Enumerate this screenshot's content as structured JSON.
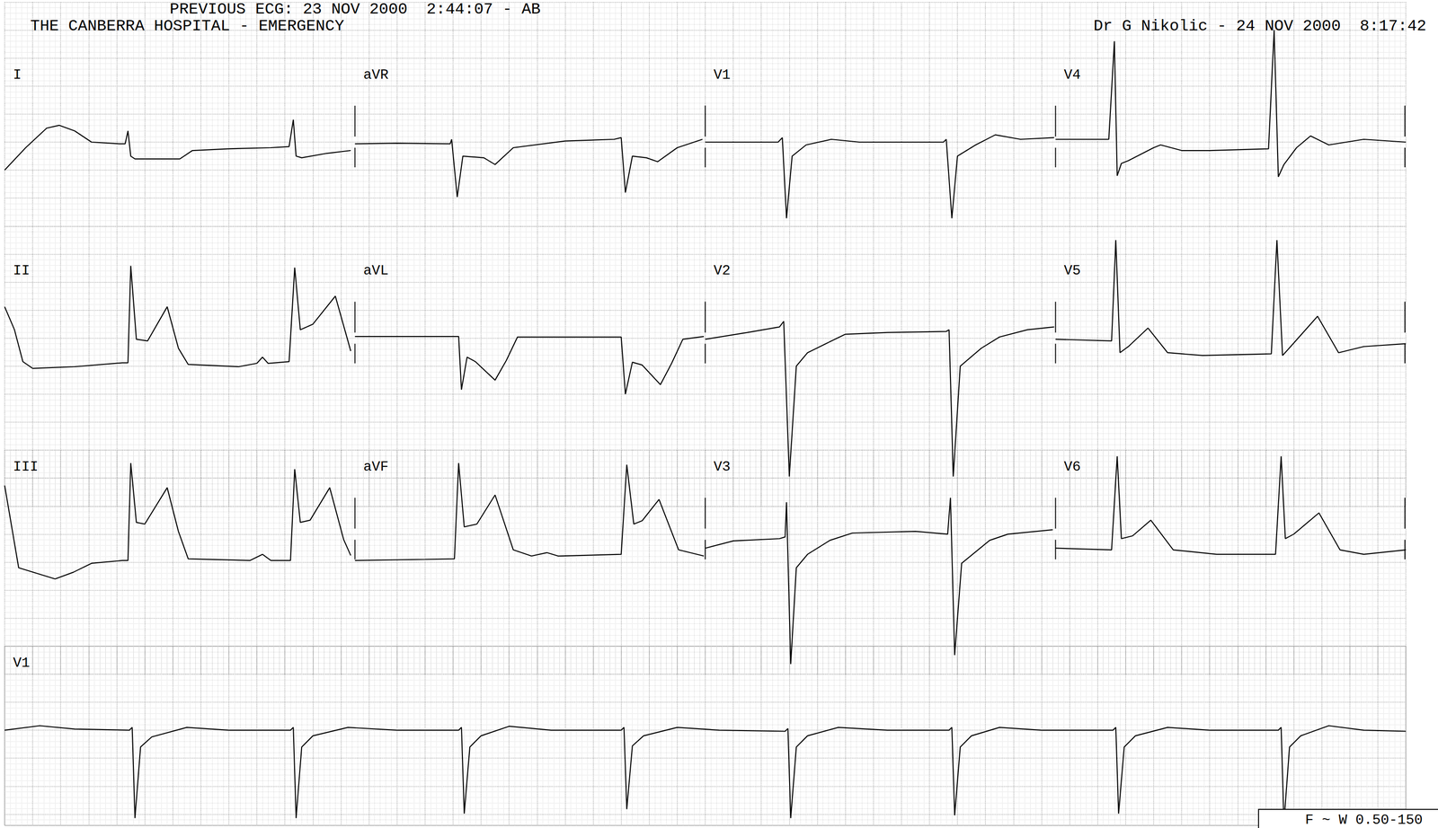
{
  "chart_data": [
    {
      "type": "line",
      "title": "THE CANBERRA HOSPITAL - EMERGENCY",
      "annotations": [
        "PREVIOUS ECG: 23 NOV 2000  2:44:07 - AB",
        "Dr G Nikolic - 24 NOV 2000  8:17:42"
      ],
      "color": "#000000",
      "grid": true,
      "tick_labels": false,
      "xlim": [
        0,
        10
      ],
      "xticks": [
        0,
        0.2,
        0.4,
        0.6,
        0.8,
        1,
        1.2,
        1.4,
        1.6,
        1.8,
        2,
        2.2,
        2.4,
        2.6,
        2.8,
        3,
        3.2,
        3.4,
        3.6,
        3.8,
        4,
        4.2,
        4.4,
        4.6,
        4.8,
        5,
        5.2,
        5.4,
        5.6,
        5.8,
        6,
        6.2,
        6.4,
        6.6,
        6.8,
        7,
        7.2,
        7.4,
        7.6,
        7.8,
        8,
        8.2,
        8.4,
        8.6,
        8.8,
        9,
        9.2,
        9.4,
        9.6,
        9.8,
        10
      ],
      "ylim": [
        -1.5,
        2.5
      ],
      "yticks": [
        -1.5,
        -1,
        -0.5,
        0,
        0.5,
        1,
        1.5,
        2,
        2.5
      ],
      "series": [
        {
          "name": "I",
          "x": [
            0,
            0.15,
            0.3,
            0.39,
            0.5,
            0.62,
            0.82,
            0.86,
            0.88,
            0.9,
            0.93,
            1.25,
            1.34,
            1.6,
            1.9,
            2.03,
            2.06,
            2.08,
            2.12,
            2.3,
            2.47
          ],
          "values": [
            -0.5,
            -0.1,
            0.25,
            0.3,
            0.2,
            0,
            -0.03,
            -0.03,
            0.2,
            -0.25,
            -0.3,
            -0.3,
            -0.15,
            -0.12,
            -0.1,
            -0.08,
            0.4,
            -0.25,
            -0.28,
            -0.2,
            -0.15
          ]
        },
        {
          "name": "aVR",
          "x": [
            2.5,
            2.8,
            3.18,
            3.19,
            3.23,
            3.27,
            3.42,
            3.5,
            3.63,
            4,
            4.35,
            4.4,
            4.43,
            4.48,
            4.58,
            4.66,
            4.8,
            4.98
          ],
          "values": [
            -0.03,
            -0.02,
            -0.03,
            0.05,
            -0.98,
            -0.25,
            -0.28,
            -0.4,
            -0.1,
            0.02,
            0.05,
            0.08,
            -0.9,
            -0.25,
            -0.28,
            -0.35,
            -0.1,
            0.05
          ]
        },
        {
          "name": "V1",
          "x": [
            5,
            5.52,
            5.55,
            5.58,
            5.62,
            5.72,
            5.9,
            6.1,
            6.7,
            6.72,
            6.76,
            6.8,
            6.93,
            7.07,
            7.25,
            7.49
          ],
          "values": [
            0,
            0,
            0.08,
            -1.36,
            -0.25,
            -0.05,
            0.05,
            0,
            0,
            0.05,
            -1.36,
            -0.25,
            -0.05,
            0.13,
            0.05,
            0.08
          ]
        },
        {
          "name": "V4",
          "x": [
            7.5,
            7.88,
            7.92,
            7.94,
            7.97,
            8.02,
            8.2,
            8.25,
            8.4,
            8.6,
            9.02,
            9.06,
            9.09,
            9.13,
            9.22,
            9.32,
            9.45,
            9.7,
            10
          ],
          "values": [
            0.05,
            0.05,
            1.8,
            -0.6,
            -0.38,
            -0.33,
            -0.1,
            -0.05,
            -0.15,
            -0.15,
            -0.12,
            2,
            -0.62,
            -0.4,
            -0.1,
            0.11,
            -0.05,
            0.05,
            0
          ]
        }
      ]
    },
    {
      "type": "line",
      "color": "#000000",
      "grid": true,
      "tick_labels": false,
      "xlim": [
        0,
        10
      ],
      "xticks": [
        0,
        0.2,
        0.4,
        0.6,
        0.8,
        1,
        1.2,
        1.4,
        1.6,
        1.8,
        2,
        2.2,
        2.4,
        2.6,
        2.8,
        3,
        3.2,
        3.4,
        3.6,
        3.8,
        4,
        4.2,
        4.4,
        4.6,
        4.8,
        5,
        5.2,
        5.4,
        5.6,
        5.8,
        6,
        6.2,
        6.4,
        6.6,
        6.8,
        7,
        7.2,
        7.4,
        7.6,
        7.8,
        8,
        8.2,
        8.4,
        8.6,
        8.8,
        9,
        9.2,
        9.4,
        9.6,
        9.8,
        10
      ],
      "ylim": [
        -3,
        2
      ],
      "yticks": [
        -3,
        -2.5,
        -2,
        -1.5,
        -1,
        -0.5,
        0,
        0.5,
        1,
        1.5,
        2
      ],
      "series": [
        {
          "name": "II",
          "x": [
            0,
            0.07,
            0.13,
            0.2,
            0.5,
            0.84,
            0.88,
            0.9,
            0.94,
            1.02,
            1.16,
            1.24,
            1.31,
            1.67,
            1.8,
            1.84,
            1.88,
            2.03,
            2.07,
            2.11,
            2.2,
            2.36,
            2.47
          ],
          "values": [
            0.56,
            0.15,
            -0.42,
            -0.54,
            -0.51,
            -0.44,
            -0.44,
            1.29,
            -0.02,
            -0.05,
            0.56,
            -0.18,
            -0.47,
            -0.51,
            -0.45,
            -0.34,
            -0.45,
            -0.42,
            1.26,
            0.15,
            0.25,
            0.75,
            -0.23
          ]
        },
        {
          "name": "aVL",
          "x": [
            2.5,
            3.2,
            3.24,
            3.26,
            3.3,
            3.36,
            3.5,
            3.58,
            3.66,
            4.4,
            4.43,
            4.48,
            4.55,
            4.68,
            4.76,
            4.84,
            4.99
          ],
          "values": [
            0.03,
            0.03,
            0.03,
            -0.92,
            -0.34,
            -0.42,
            -0.75,
            -0.4,
            0.02,
            0.02,
            -1,
            -0.43,
            -0.48,
            -0.83,
            -0.45,
            -0.02,
            0.03
          ]
        },
        {
          "name": "V2",
          "x": [
            5,
            5.3,
            5.53,
            5.56,
            5.6,
            5.65,
            5.73,
            5.86,
            6,
            6.3,
            6.72,
            6.74,
            6.77,
            6.82,
            6.97,
            7.1,
            7.3,
            7.49
          ],
          "values": [
            -0.02,
            0.1,
            0.2,
            0.3,
            -2.47,
            -0.5,
            -0.26,
            -0.1,
            0.07,
            0.1,
            0.12,
            0.15,
            -2.47,
            -0.5,
            -0.18,
            0.02,
            0.15,
            0.2
          ]
        },
        {
          "name": "V5",
          "x": [
            7.5,
            7.9,
            7.93,
            7.96,
            8.02,
            8.16,
            8.3,
            8.55,
            9.04,
            9.08,
            9.12,
            9.16,
            9.37,
            9.52,
            9.7,
            10
          ],
          "values": [
            -0.02,
            -0.05,
            1.75,
            -0.26,
            -0.15,
            0.18,
            -0.26,
            -0.31,
            -0.28,
            1.75,
            -0.31,
            -0.2,
            0.39,
            -0.26,
            -0.15,
            -0.1
          ]
        }
      ]
    },
    {
      "type": "line",
      "color": "#000000",
      "grid": true,
      "tick_labels": false,
      "xlim": [
        0,
        10
      ],
      "xticks": [
        0,
        0.2,
        0.4,
        0.6,
        0.8,
        1,
        1.2,
        1.4,
        1.6,
        1.8,
        2,
        2.2,
        2.4,
        2.6,
        2.8,
        3,
        3.2,
        3.4,
        3.6,
        3.8,
        4,
        4.2,
        4.4,
        4.6,
        4.8,
        5,
        5.2,
        5.4,
        5.6,
        5.8,
        6,
        6.2,
        6.4,
        6.6,
        6.8,
        7,
        7.2,
        7.4,
        7.6,
        7.8,
        8,
        8.2,
        8.4,
        8.6,
        8.8,
        9,
        9.2,
        9.4,
        9.6,
        9.8,
        10
      ],
      "ylim": [
        -2.5,
        1.5
      ],
      "yticks": [
        -2.5,
        -2,
        -1.5,
        -1,
        -0.5,
        0,
        0.5,
        1,
        1.5
      ],
      "series": [
        {
          "name": "III",
          "x": [
            0,
            0.1,
            0.36,
            0.49,
            0.62,
            0.84,
            0.88,
            0.9,
            0.94,
            1,
            1.16,
            1.24,
            1.31,
            1.75,
            1.84,
            1.9,
            2.04,
            2.07,
            2.11,
            2.18,
            2.32,
            2.42,
            2.47
          ],
          "values": [
            0.87,
            -0.6,
            -0.8,
            -0.68,
            -0.52,
            -0.47,
            -0.47,
            1.27,
            0.21,
            0.18,
            0.83,
            0.05,
            -0.44,
            -0.47,
            -0.36,
            -0.47,
            -0.47,
            1.16,
            0.21,
            0.25,
            0.83,
            -0.1,
            -0.38
          ]
        },
        {
          "name": "aVF",
          "x": [
            2.5,
            3,
            3.21,
            3.24,
            3.28,
            3.37,
            3.5,
            3.63,
            3.76,
            3.87,
            3.95,
            4.4,
            4.44,
            4.49,
            4.55,
            4.67,
            4.81,
            4.99
          ],
          "values": [
            -0.47,
            -0.45,
            -0.44,
            1.27,
            0.13,
            0.18,
            0.7,
            -0.28,
            -0.39,
            -0.33,
            -0.39,
            -0.36,
            1.24,
            0.18,
            0.24,
            0.62,
            -0.28,
            -0.39
          ]
        },
        {
          "name": "V3",
          "x": [
            5,
            5.2,
            5.53,
            5.57,
            5.58,
            5.61,
            5.65,
            5.73,
            5.89,
            6.05,
            6.5,
            6.73,
            6.75,
            6.78,
            6.83,
            7.03,
            7.16,
            7.48
          ],
          "values": [
            -0.25,
            -0.12,
            -0.08,
            -0.05,
            0.57,
            -2.32,
            -0.6,
            -0.36,
            -0.11,
            0.02,
            0.05,
            0,
            0.65,
            -2.16,
            -0.52,
            -0.11,
            0,
            0.08
          ]
        },
        {
          "name": "V6",
          "x": [
            7.5,
            7.9,
            7.94,
            7.97,
            8.05,
            8.18,
            8.34,
            8.65,
            9.07,
            9.11,
            9.14,
            9.2,
            9.38,
            9.53,
            9.7,
            10
          ],
          "values": [
            -0.25,
            -0.28,
            1.39,
            -0.08,
            -0.03,
            0.25,
            -0.28,
            -0.36,
            -0.36,
            1.39,
            -0.08,
            0,
            0.38,
            -0.28,
            -0.36,
            -0.28
          ]
        }
      ]
    },
    {
      "type": "line",
      "annotations": [
        "F ~ W 0.50-150"
      ],
      "color": "#000000",
      "grid": true,
      "tick_labels": false,
      "xlim": [
        0,
        10
      ],
      "xticks": [
        0,
        0.2,
        0.4,
        0.6,
        0.8,
        1,
        1.2,
        1.4,
        1.6,
        1.8,
        2,
        2.2,
        2.4,
        2.6,
        2.8,
        3,
        3.2,
        3.4,
        3.6,
        3.8,
        4,
        4.2,
        4.4,
        4.6,
        4.8,
        5,
        5.2,
        5.4,
        5.6,
        5.8,
        6,
        6.2,
        6.4,
        6.6,
        6.8,
        7,
        7.2,
        7.4,
        7.6,
        7.8,
        8,
        8.2,
        8.4,
        8.6,
        8.8,
        9,
        9.2,
        9.4,
        9.6,
        9.8,
        10
      ],
      "ylim": [
        -1.7,
        1.5
      ],
      "yticks": [
        -1.5,
        -1,
        -0.5,
        0,
        0.5,
        1,
        1.5
      ],
      "series": [
        {
          "name": "V1",
          "x": [
            0,
            0.25,
            0.5,
            0.89,
            0.91,
            0.93,
            0.97,
            1.05,
            1.3,
            1.6,
            2.04,
            2.06,
            2.08,
            2.12,
            2.2,
            2.45,
            2.8,
            3.24,
            3.26,
            3.28,
            3.32,
            3.4,
            3.6,
            3.9,
            4.4,
            4.42,
            4.44,
            4.48,
            4.56,
            4.8,
            5.1,
            5.57,
            5.59,
            5.61,
            5.65,
            5.73,
            5.95,
            6.3,
            6.74,
            6.76,
            6.78,
            6.82,
            6.9,
            7.1,
            7.4,
            7.91,
            7.93,
            7.95,
            7.99,
            8.07,
            8.3,
            8.6,
            9.09,
            9.11,
            9.13,
            9.17,
            9.25,
            9.45,
            9.7,
            10
          ],
          "values": [
            0,
            0.08,
            0.02,
            0,
            0.05,
            -1.57,
            -0.3,
            -0.12,
            0.05,
            0,
            0,
            0.05,
            -1.57,
            -0.3,
            -0.1,
            0.05,
            0,
            0,
            0.05,
            -1.49,
            -0.3,
            -0.1,
            0.07,
            0,
            0,
            0.05,
            -1.41,
            -0.28,
            -0.1,
            0.05,
            0,
            -0.02,
            0.03,
            -1.57,
            -0.3,
            -0.1,
            0.05,
            0,
            0,
            0.05,
            -1.52,
            -0.3,
            -0.1,
            0.05,
            0,
            0,
            0.05,
            -1.49,
            -0.3,
            -0.1,
            0.05,
            0,
            0,
            0.05,
            -1.65,
            -0.3,
            -0.1,
            0.08,
            0,
            -0.02
          ]
        }
      ]
    }
  ]
}
